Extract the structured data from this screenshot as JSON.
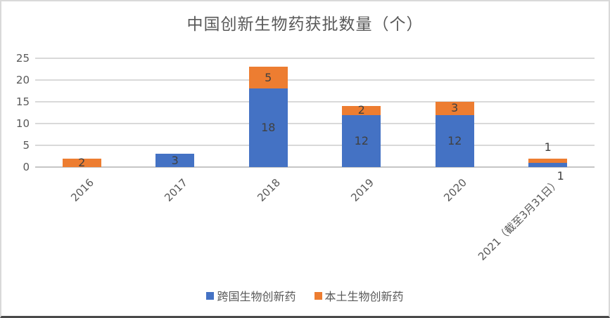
{
  "chart_data": {
    "type": "bar",
    "stacked": true,
    "title": "中国创新生物药获批数量（个）",
    "categories": [
      "2016",
      "2017",
      "2018",
      "2019",
      "2020",
      "2021（截至3月31日）"
    ],
    "series": [
      {
        "name": "跨国生物创新药",
        "color": "#4472C4",
        "values": [
          0,
          3,
          18,
          12,
          12,
          1
        ]
      },
      {
        "name": "本土生物创新药",
        "color": "#ED7D31",
        "values": [
          2,
          0,
          5,
          2,
          3,
          1
        ]
      }
    ],
    "ylim": [
      0,
      25
    ],
    "yticks": [
      0,
      5,
      10,
      15,
      20,
      25
    ],
    "grid": true,
    "data_labels": true,
    "legend_position": "bottom",
    "xlabel": "",
    "ylabel": ""
  },
  "styles": {
    "blue": "#4472C4",
    "orange": "#ED7D31",
    "gridline_color": "#D9D9D9",
    "axis_line_color": "#C6C6C6",
    "tick_text_color": "#595959",
    "data_label_color": "#404040",
    "title_color": "#595959",
    "frame_border_color": "#D9D9D9",
    "background": "#FFFFFF"
  }
}
